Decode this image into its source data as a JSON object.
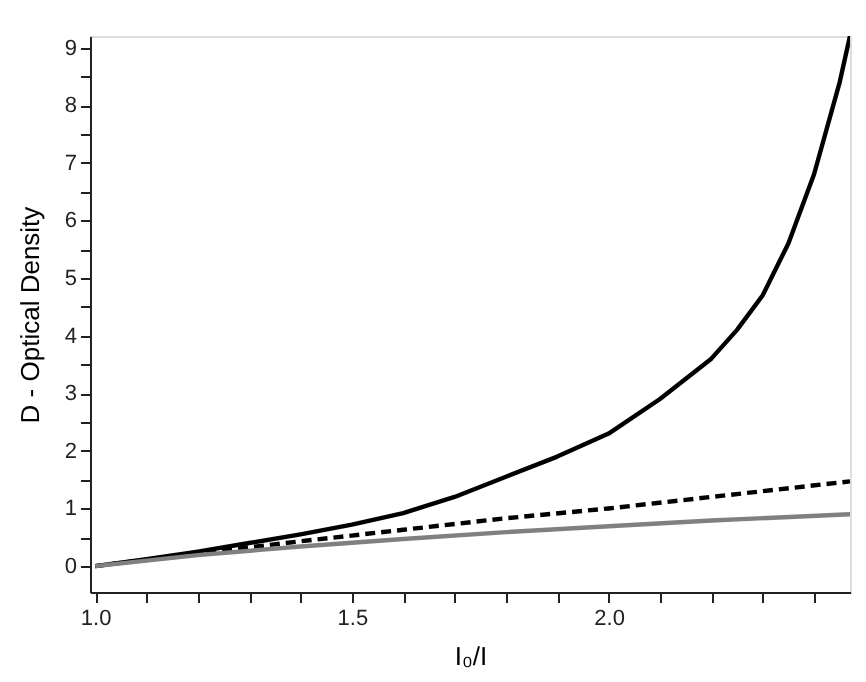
{
  "chart_data": {
    "type": "line",
    "xlabel": "I₀/I",
    "ylabel": "D - Optical Density",
    "xlim": [
      0.99,
      2.47
    ],
    "ylim": [
      -0.45,
      9.2
    ],
    "xticks": [
      {
        "value": 1.0,
        "label": "1.0"
      },
      {
        "value": 1.1,
        "label": null
      },
      {
        "value": 1.2,
        "label": null
      },
      {
        "value": 1.3,
        "label": null
      },
      {
        "value": 1.4,
        "label": null
      },
      {
        "value": 1.5,
        "label": "1.5"
      },
      {
        "value": 1.6,
        "label": null
      },
      {
        "value": 1.7,
        "label": null
      },
      {
        "value": 1.8,
        "label": null
      },
      {
        "value": 1.9,
        "label": null
      },
      {
        "value": 2.0,
        "label": "2.0"
      },
      {
        "value": 2.1,
        "label": null
      },
      {
        "value": 2.2,
        "label": null
      },
      {
        "value": 2.3,
        "label": null
      },
      {
        "value": 2.4,
        "label": null
      }
    ],
    "yticks": [
      0,
      {
        "value": 0.5,
        "label": null
      },
      1,
      {
        "value": 1.5,
        "label": null
      },
      2,
      {
        "value": 2.5,
        "label": null
      },
      3,
      {
        "value": 3.5,
        "label": null
      },
      4,
      {
        "value": 4.5,
        "label": null
      },
      5,
      {
        "value": 5.5,
        "label": null
      },
      6,
      {
        "value": 6.5,
        "label": null
      },
      7,
      {
        "value": 7.5,
        "label": null
      },
      8,
      {
        "value": 8.5,
        "label": null
      },
      9
    ],
    "grid": false,
    "marker": "none",
    "series": [
      {
        "color": "#000000",
        "line_style": "solid",
        "x": [
          1.0,
          1.1,
          1.2,
          1.3,
          1.4,
          1.5,
          1.6,
          1.7,
          1.8,
          1.9,
          2.0,
          2.1,
          2.2,
          2.25,
          2.3,
          2.35,
          2.4,
          2.45,
          2.47
        ],
        "values": [
          0,
          0.12,
          0.25,
          0.4,
          0.55,
          0.72,
          0.92,
          1.2,
          1.55,
          1.9,
          2.3,
          2.9,
          3.6,
          4.1,
          4.7,
          5.6,
          6.8,
          8.4,
          9.2
        ]
      },
      {
        "color": "#000000",
        "line_style": "dashed",
        "x": [
          1.0,
          1.2,
          1.4,
          1.6,
          1.8,
          2.0,
          2.2,
          2.47
        ],
        "values": [
          0,
          0.22,
          0.43,
          0.63,
          0.83,
          1.0,
          1.2,
          1.47
        ]
      },
      {
        "color": "#808080",
        "line_style": "solid",
        "x": [
          1.0,
          1.2,
          1.4,
          1.6,
          1.8,
          2.0,
          2.2,
          2.47
        ],
        "values": [
          0,
          0.19,
          0.34,
          0.47,
          0.59,
          0.69,
          0.79,
          0.9
        ]
      }
    ]
  }
}
